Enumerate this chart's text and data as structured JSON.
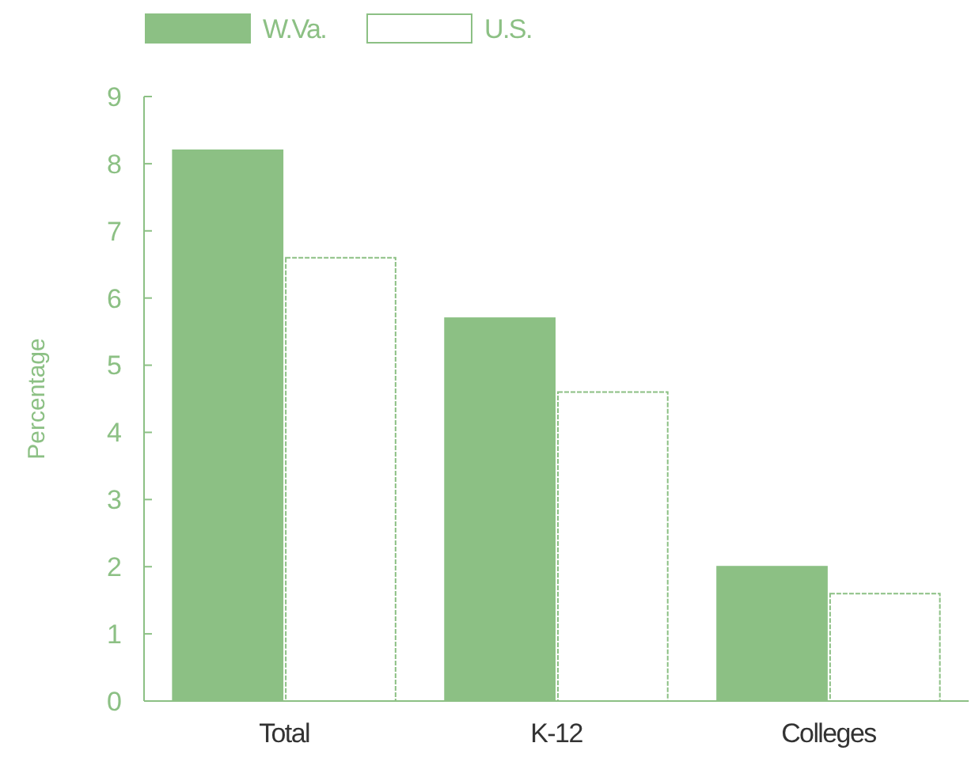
{
  "chart_data": {
    "type": "bar",
    "ylabel": "Percentage",
    "categories": [
      "Total",
      "K-12",
      "Colleges"
    ],
    "series": [
      {
        "name": "W.Va.",
        "color": "#8cc084",
        "values": [
          8.2,
          5.7,
          2.0
        ]
      },
      {
        "name": "U.S.",
        "color": "#ffffff",
        "values": [
          6.6,
          4.6,
          1.6
        ]
      }
    ],
    "ylim": [
      0,
      9
    ],
    "yticks": [
      0,
      1,
      2,
      3,
      4,
      5,
      6,
      7,
      8,
      9
    ],
    "legend": "top left",
    "grid": false
  }
}
